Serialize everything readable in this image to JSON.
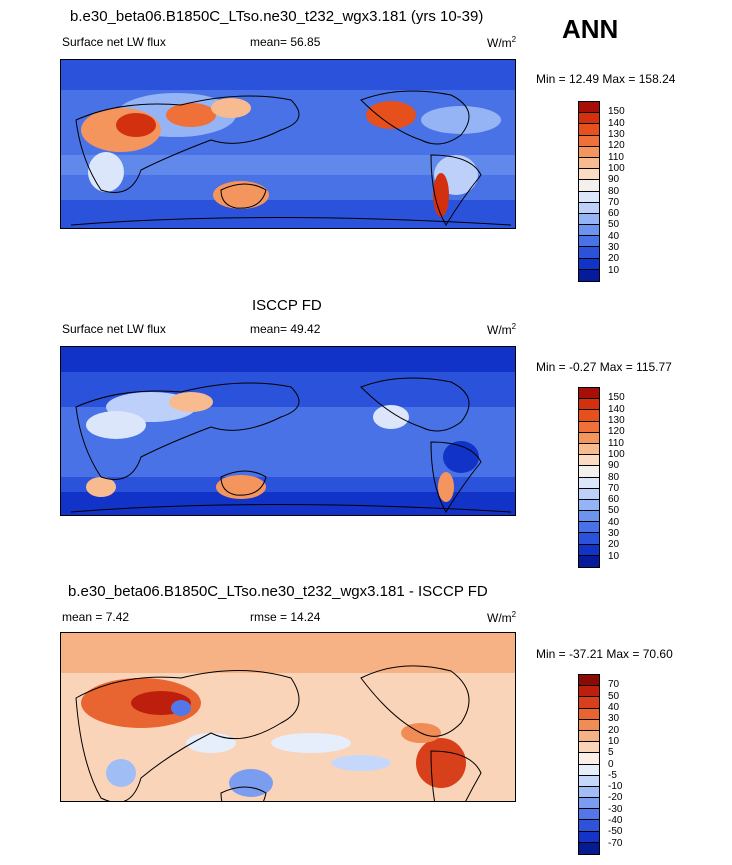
{
  "season": "ANN",
  "panels": [
    {
      "title": "b.e30_beta06.B1850C_LTso.ne30_t232_wgx3.181 (yrs 10-39)",
      "left_label": "Surface net LW flux",
      "mid_label": "mean=  56.85",
      "units": "W/m",
      "units_exp": "2",
      "minmax": "Min =  12.49 Max = 158.24",
      "levels": [
        "150",
        "140",
        "130",
        "120",
        "110",
        "100",
        "90",
        "80",
        "70",
        "60",
        "50",
        "40",
        "30",
        "20",
        "10"
      ],
      "colors": [
        "#a50f07",
        "#d2300f",
        "#e5501d",
        "#ef7038",
        "#f4955e",
        "#f8bb90",
        "#fbdcc3",
        "#f4f0ec",
        "#dbe6fb",
        "#bcd0fa",
        "#95b4f5",
        "#6c93ee",
        "#4872e6",
        "#2b52db",
        "#1233c8",
        "#051b9c"
      ]
    },
    {
      "title": "ISCCP FD",
      "left_label": "Surface net LW flux",
      "mid_label": "mean=  49.42",
      "units": "W/m",
      "units_exp": "2",
      "minmax": "Min =  -0.27 Max = 115.77",
      "levels": [
        "150",
        "140",
        "130",
        "120",
        "110",
        "100",
        "90",
        "80",
        "70",
        "60",
        "50",
        "40",
        "30",
        "20",
        "10"
      ],
      "colors": [
        "#a50f07",
        "#d2300f",
        "#e5501d",
        "#ef7038",
        "#f4955e",
        "#f8bb90",
        "#fbdcc3",
        "#f4f0ec",
        "#dbe6fb",
        "#bcd0fa",
        "#95b4f5",
        "#6c93ee",
        "#4872e6",
        "#2b52db",
        "#1233c8",
        "#051b9c"
      ]
    },
    {
      "title": "b.e30_beta06.B1850C_LTso.ne30_t232_wgx3.181 - ISCCP FD",
      "left_label": "mean =  7.42",
      "mid_label": "rmse =  14.24",
      "units": "W/m",
      "units_exp": "2",
      "minmax": "Min = -37.21 Max =  70.60",
      "levels": [
        "70",
        "50",
        "40",
        "30",
        "20",
        "10",
        "5",
        "0",
        "-5",
        "-10",
        "-20",
        "-30",
        "-40",
        "-50",
        "-70"
      ],
      "colors": [
        "#8b0a03",
        "#bd1f0c",
        "#d7401b",
        "#e86532",
        "#f08c56",
        "#f6b184",
        "#fad4b8",
        "#fbeee6",
        "#e6eefb",
        "#c5d8fb",
        "#a0bdf6",
        "#7b9df0",
        "#5377e8",
        "#3052db",
        "#1533c4",
        "#061a92"
      ]
    }
  ]
}
